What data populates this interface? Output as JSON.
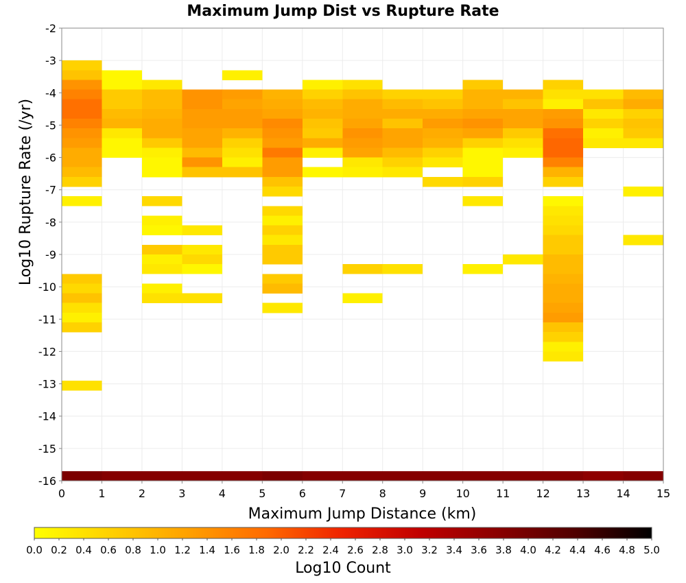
{
  "chart_data": {
    "type": "heatmap",
    "title": "Maximum Jump Dist vs Rupture Rate",
    "xlabel": "Maximum Jump Distance (km)",
    "ylabel": "Log10 Rupture Rate (/yr)",
    "xlim": [
      0,
      15
    ],
    "ylim": [
      -16,
      -2
    ],
    "x_ticks": [
      "0",
      "1",
      "2",
      "3",
      "4",
      "5",
      "6",
      "7",
      "8",
      "9",
      "10",
      "11",
      "12",
      "13",
      "14",
      "15"
    ],
    "y_ticks": [
      "-2",
      "-3",
      "-4",
      "-5",
      "-6",
      "-7",
      "-8",
      "-9",
      "-10",
      "-11",
      "-12",
      "-13",
      "-14",
      "-15",
      "-16"
    ],
    "x_bin_width": 1,
    "y_bin_height": 0.3,
    "grid": true,
    "colorbar": {
      "label": "Log10 Count",
      "range": [
        0,
        5
      ],
      "ticks": [
        "0.0",
        "0.2",
        "0.4",
        "0.6",
        "0.8",
        "1.0",
        "1.2",
        "1.4",
        "1.6",
        "1.8",
        "2.0",
        "2.2",
        "2.4",
        "2.6",
        "2.8",
        "3.0",
        "3.2",
        "3.4",
        "3.6",
        "3.8",
        "4.0",
        "4.2",
        "4.4",
        "4.6",
        "4.8",
        "5.0"
      ],
      "colors": [
        "#ffff00",
        "#ffd000",
        "#ffa000",
        "#ff6a00",
        "#ee2200",
        "#c00000",
        "#8a0000",
        "#500000",
        "#000000"
      ]
    },
    "columns": [
      {
        "x": 0,
        "start": -3.0,
        "values": [
          0.6,
          0.8,
          1.4,
          1.6,
          1.8,
          1.8,
          1.6,
          1.4,
          1.3,
          1.1,
          1.1,
          0.9,
          0.6,
          null,
          0.2,
          null,
          null,
          null,
          null,
          null,
          null,
          null,
          0.7,
          0.5,
          0.8,
          0.4,
          0.2,
          0.6,
          null,
          null,
          null,
          null,
          null,
          0.4
        ],
        "bottom": [
          -16.0,
          3.9
        ]
      },
      {
        "x": 1,
        "start": -3.3,
        "values": [
          0.1,
          0.1,
          0.7,
          0.7,
          0.9,
          1.0,
          0.3,
          0.1,
          0.1
        ],
        "bottom": [
          -16.0,
          3.8
        ]
      },
      {
        "x": 2,
        "start": -3.6,
        "values": [
          0.3,
          0.9,
          0.9,
          1.0,
          1.1,
          1.1,
          0.7,
          0.2,
          0.1,
          0.1,
          null,
          null,
          0.5,
          null,
          0.2,
          0.1,
          null,
          0.7,
          0.2,
          0.3,
          null,
          0.2,
          0.4
        ],
        "bottom": [
          -16.0,
          3.8
        ]
      },
      {
        "x": 3,
        "start": -3.9,
        "values": [
          1.4,
          1.4,
          1.3,
          1.3,
          1.2,
          1.2,
          0.9,
          1.4,
          0.8,
          null,
          null,
          null,
          null,
          null,
          0.3,
          null,
          0.3,
          0.5,
          0.1,
          null,
          null,
          0.4
        ],
        "bottom": [
          -16.0,
          3.8
        ]
      },
      {
        "x": 4,
        "start": -3.3,
        "values": [
          0.2,
          null,
          1.3,
          1.2,
          1.3,
          1.3,
          1.0,
          0.6,
          0.4,
          0.2,
          0.8
        ],
        "bottom": [
          -16.0,
          3.8
        ]
      },
      {
        "x": 5,
        "start": -3.9,
        "values": [
          1.0,
          1.1,
          1.2,
          1.5,
          1.4,
          1.3,
          1.7,
          1.3,
          1.3,
          0.8,
          0.5,
          null,
          0.5,
          0.2,
          0.6,
          0.3,
          0.7,
          0.7,
          null,
          0.7,
          0.9,
          null,
          0.3
        ],
        "bottom": [
          -16.0,
          3.9
        ]
      },
      {
        "x": 6,
        "start": -3.6,
        "values": [
          0.2,
          0.6,
          0.9,
          1.0,
          0.8,
          0.7,
          1.1,
          0.2,
          null,
          0.1
        ],
        "bottom": [
          -16.0,
          3.8
        ]
      },
      {
        "x": 7,
        "start": -3.6,
        "values": [
          0.4,
          0.8,
          1.1,
          1.1,
          1.2,
          1.4,
          1.3,
          1.2,
          0.3,
          0.2,
          null,
          null,
          null,
          null,
          null,
          null,
          null,
          null,
          null,
          0.6,
          null,
          null,
          0.2
        ],
        "bottom": [
          -16.0,
          3.8
        ]
      },
      {
        "x": 8,
        "start": -3.9,
        "values": [
          0.6,
          0.9,
          1.1,
          0.8,
          1.2,
          1.2,
          0.9,
          0.6,
          0.3,
          null,
          null,
          null,
          null,
          null,
          null,
          null,
          null,
          null,
          0.4
        ],
        "bottom": [
          -16.0,
          3.8
        ]
      },
      {
        "x": 9,
        "start": -3.9,
        "values": [
          0.6,
          0.8,
          1.1,
          1.3,
          1.1,
          1.0,
          0.6,
          0.3,
          null,
          0.5
        ],
        "bottom": [
          -16.0,
          3.8
        ]
      },
      {
        "x": 10,
        "start": -3.6,
        "values": [
          0.7,
          1.0,
          1.0,
          1.2,
          1.4,
          1.2,
          0.6,
          0.1,
          0.1,
          0.1,
          0.6,
          null,
          0.3,
          null,
          null,
          null,
          null,
          null,
          null,
          0.2
        ],
        "bottom": [
          -16.0,
          3.8
        ]
      },
      {
        "x": 11,
        "start": -3.9,
        "values": [
          1.0,
          0.8,
          1.2,
          1.2,
          0.7,
          0.4,
          0.2,
          null,
          null,
          null,
          null,
          null,
          null,
          null,
          null,
          null,
          null,
          0.3
        ],
        "bottom": [
          -16.0,
          3.8
        ]
      },
      {
        "x": 12,
        "start": -3.6,
        "values": [
          0.6,
          0.4,
          0.2,
          1.3,
          1.4,
          1.8,
          1.9,
          1.9,
          1.6,
          1.0,
          0.6,
          null,
          0.1,
          0.3,
          0.4,
          0.5,
          0.7,
          0.7,
          0.9,
          0.9,
          1.0,
          1.1,
          1.1,
          1.2,
          1.3,
          0.8,
          0.6,
          0.2,
          0.3
        ],
        "bottom": [
          -16.0,
          3.8
        ]
      },
      {
        "x": 13,
        "start": -3.9,
        "values": [
          0.4,
          0.8,
          0.3,
          0.6,
          0.2,
          0.3
        ],
        "bottom": [
          -16.0,
          3.7
        ]
      },
      {
        "x": 14,
        "start": -3.9,
        "values": [
          0.9,
          1.1,
          0.6,
          0.8,
          0.7,
          0.3,
          null,
          null,
          null,
          null,
          0.2,
          null,
          null,
          null,
          null,
          0.3
        ],
        "bottom": [
          -16.0,
          3.8
        ]
      }
    ]
  }
}
